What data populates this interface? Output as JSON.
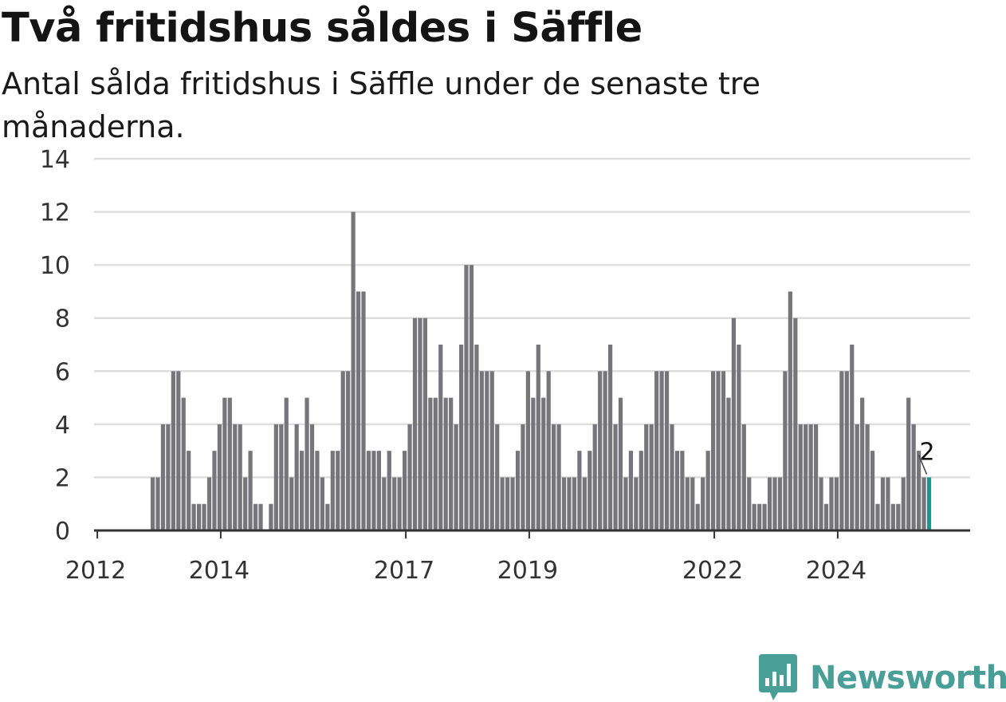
{
  "title": "Två fritidshus såldes i Säffle",
  "subtitle": "Antal sålda fritidshus i Säffle under de senaste tre månaderna.",
  "logo_text": "Newsworthy",
  "colors": {
    "bar": "#76757a",
    "highlight": "#17988f",
    "grid": "#dedede",
    "axis": "#333333",
    "logo": "#4a9e98"
  },
  "chart_data": {
    "type": "bar",
    "x_start": "2012-01",
    "frequency": "monthly",
    "ylim": [
      0,
      14
    ],
    "yticks": [
      0,
      2,
      4,
      6,
      8,
      10,
      12,
      14
    ],
    "xtick_labels": [
      "2012",
      "2014",
      "2017",
      "2019",
      "2022",
      "2024"
    ],
    "values": [
      0,
      0,
      0,
      0,
      0,
      0,
      0,
      0,
      0,
      0,
      0,
      2,
      2,
      4,
      4,
      6,
      6,
      5,
      3,
      1,
      1,
      1,
      2,
      3,
      4,
      5,
      5,
      4,
      4,
      2,
      3,
      1,
      1,
      0,
      1,
      4,
      4,
      5,
      2,
      4,
      3,
      5,
      4,
      3,
      2,
      1,
      3,
      3,
      6,
      6,
      12,
      9,
      9,
      3,
      3,
      3,
      2,
      3,
      2,
      2,
      3,
      4,
      8,
      8,
      8,
      5,
      5,
      7,
      5,
      5,
      4,
      7,
      10,
      10,
      7,
      6,
      6,
      6,
      4,
      2,
      2,
      2,
      3,
      4,
      6,
      5,
      7,
      5,
      6,
      4,
      4,
      2,
      2,
      2,
      3,
      2,
      3,
      4,
      6,
      6,
      7,
      4,
      5,
      2,
      3,
      2,
      3,
      4,
      4,
      6,
      6,
      6,
      4,
      3,
      3,
      2,
      2,
      1,
      2,
      3,
      6,
      6,
      6,
      5,
      8,
      7,
      4,
      2,
      1,
      1,
      1,
      2,
      2,
      2,
      6,
      9,
      8,
      4,
      4,
      4,
      4,
      2,
      1,
      2,
      2,
      6,
      6,
      7,
      4,
      5,
      4,
      3,
      1,
      2,
      2,
      1,
      1,
      2,
      5,
      4,
      3,
      2,
      2
    ],
    "highlight_last": true,
    "annotation": "2"
  }
}
